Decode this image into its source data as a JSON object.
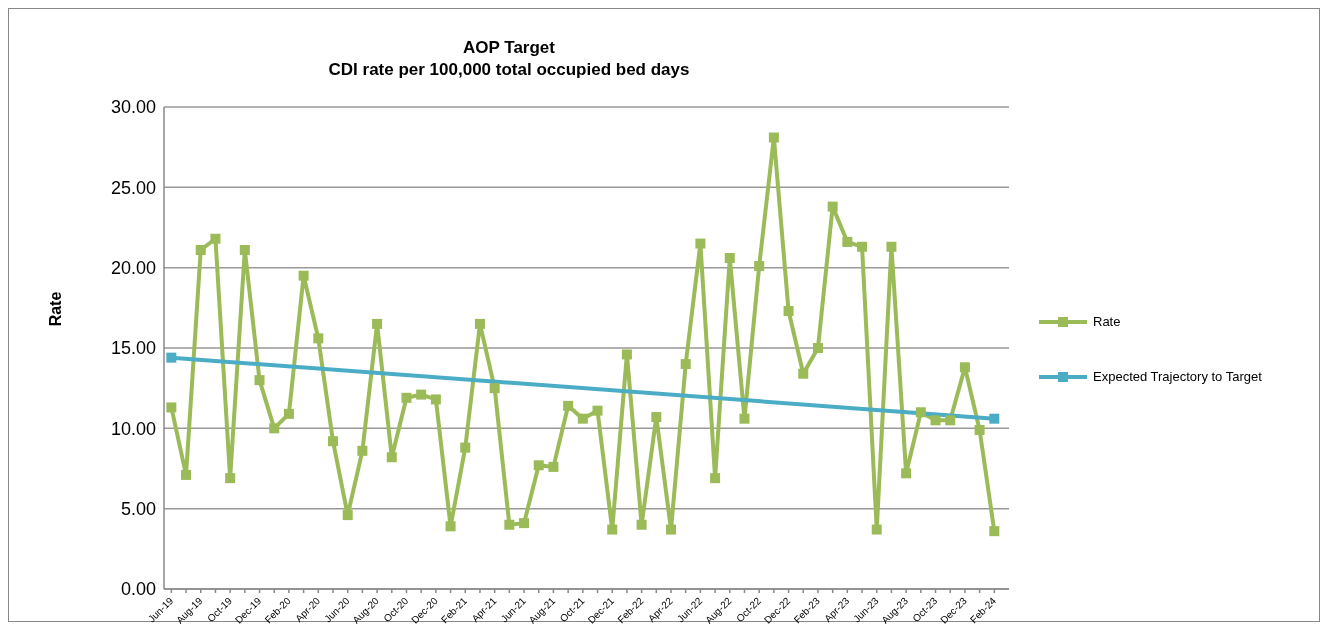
{
  "chart_data": {
    "type": "line",
    "title": "AOP Target\nCDI rate per 100,000 total occupied bed days",
    "ylabel": "Rate",
    "categories": [
      "Jun-19",
      null,
      "Aug-19",
      null,
      "Oct-19",
      null,
      "Dec-19",
      null,
      "Feb-20",
      null,
      "Apr-20",
      null,
      "Jun-20",
      null,
      "Aug-20",
      null,
      "Oct-20",
      null,
      "Dec-20",
      null,
      "Feb-21",
      null,
      "Apr-21",
      null,
      "Jun-21",
      null,
      "Aug-21",
      null,
      "Oct-21",
      null,
      "Dec-21",
      null,
      "Feb-22",
      null,
      "Apr-22",
      null,
      "Jun-22",
      null,
      "Aug-22",
      null,
      "Oct-22",
      null,
      "Dec-22",
      null,
      "Feb-23",
      null,
      "Apr-23",
      null,
      "Jun-23",
      null,
      "Aug-23",
      null,
      "Oct-23",
      null,
      "Dec-23",
      null,
      "Feb-24"
    ],
    "series": [
      {
        "name": "Rate",
        "color": "#9bbb59",
        "values": [
          11.3,
          7.1,
          21.1,
          21.8,
          6.9,
          21.1,
          13.0,
          10.0,
          10.9,
          19.5,
          15.6,
          9.2,
          4.6,
          8.6,
          16.5,
          8.2,
          11.9,
          12.1,
          11.8,
          3.9,
          8.8,
          16.5,
          12.5,
          4.0,
          4.1,
          7.7,
          7.6,
          11.4,
          10.6,
          11.1,
          3.7,
          14.6,
          4.0,
          10.7,
          3.7,
          14.0,
          21.5,
          6.9,
          20.6,
          10.6,
          20.1,
          28.1,
          17.3,
          13.4,
          15.0,
          23.8,
          21.6,
          21.3,
          3.7,
          21.3,
          7.2,
          11.0,
          10.5,
          10.5,
          13.8,
          9.9,
          3.6
        ]
      },
      {
        "name": "Expected Trajectory to Target",
        "color": "#4bacc6",
        "x": [
          "Jun-19",
          "Feb-24"
        ],
        "values": [
          14.4,
          10.6
        ]
      }
    ],
    "ylim": [
      0,
      30
    ],
    "yticks": [
      {
        "value": 0,
        "label": "0.00"
      },
      {
        "value": 5,
        "label": "5.00"
      },
      {
        "value": 10,
        "label": "10.00"
      },
      {
        "value": 15,
        "label": "15.00"
      },
      {
        "value": 20,
        "label": "20.00"
      },
      {
        "value": 25,
        "label": "25.00"
      },
      {
        "value": 30,
        "label": "30.00"
      }
    ],
    "grid": "y",
    "legend": "right",
    "marker": "square",
    "line_style": "solid"
  }
}
